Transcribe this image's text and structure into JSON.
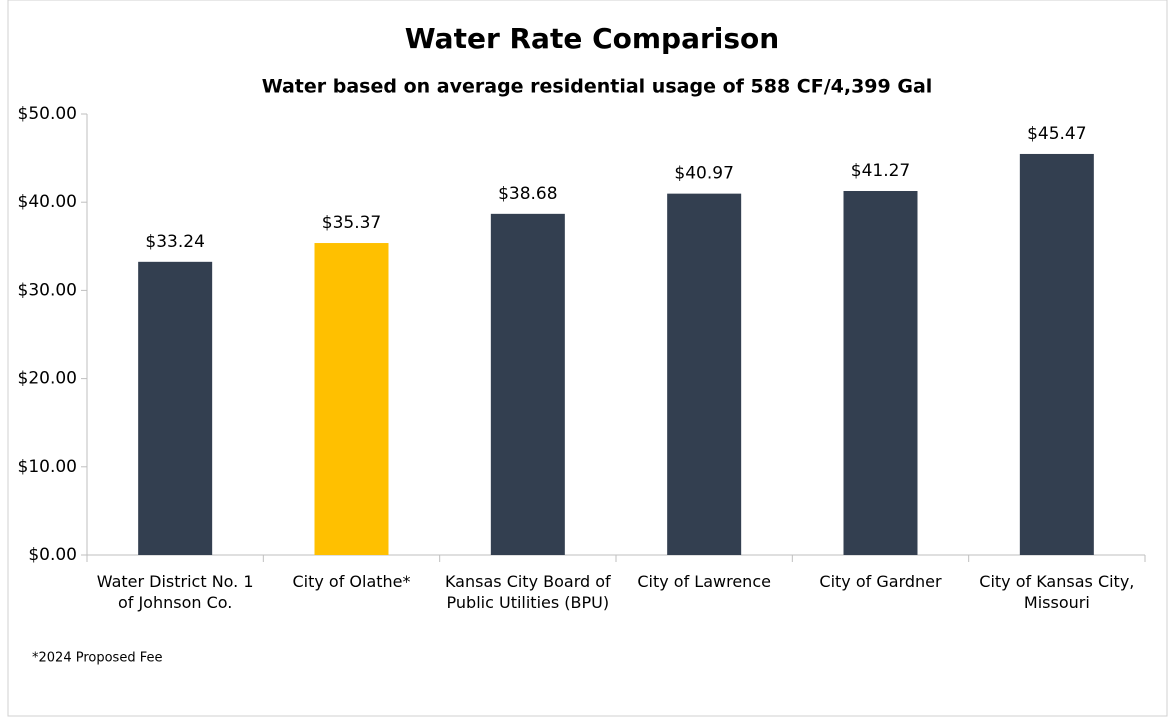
{
  "chart_data": {
    "type": "bar",
    "title": "Water Rate Comparison",
    "subtitle": "Water based on average residential usage of 588 CF/4,399 Gal",
    "categories": [
      "Water District No. 1 of Johnson Co.",
      "City of Olathe*",
      "Kansas City Board of Public Utilities (BPU)",
      "City of Lawrence",
      "City of Gardner",
      "City of Kansas City, Missouri"
    ],
    "values": [
      33.24,
      35.37,
      38.68,
      40.97,
      41.27,
      45.47
    ],
    "value_labels": [
      "$33.24",
      "$35.37",
      "$38.68",
      "$40.97",
      "$41.27",
      "$45.47"
    ],
    "colors": [
      "#333f50",
      "#ffc000",
      "#333f50",
      "#333f50",
      "#333f50",
      "#333f50"
    ],
    "ylim": [
      0,
      50
    ],
    "yticks": [
      {
        "value": 0,
        "label": "$0.00"
      },
      {
        "value": 10,
        "label": "$10.00"
      },
      {
        "value": 20,
        "label": "$20.00"
      },
      {
        "value": 30,
        "label": "$30.00"
      },
      {
        "value": 40,
        "label": "$40.00"
      },
      {
        "value": 50,
        "label": "$50.00"
      }
    ],
    "grid": false,
    "annotation": "*2024 Proposed Fee"
  }
}
